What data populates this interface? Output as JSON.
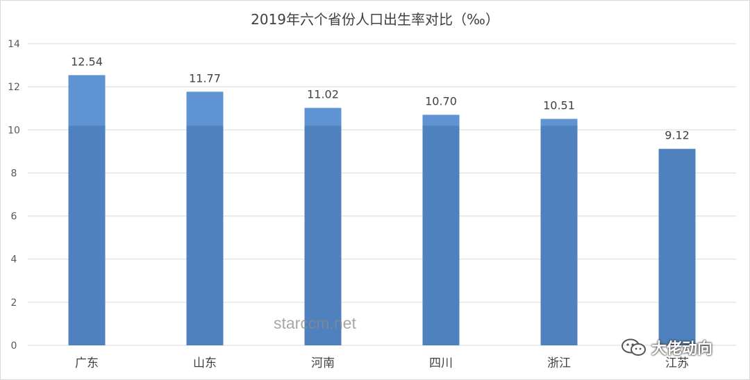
{
  "chart_data": {
    "type": "bar",
    "title": "2019年六个省份人口出生率对比（‰）",
    "categories": [
      "广东",
      "山东",
      "河南",
      "四川",
      "浙江",
      "江苏"
    ],
    "values": [
      12.54,
      11.77,
      11.02,
      10.7,
      10.51,
      9.12
    ],
    "data_labels": [
      "12.54",
      "11.77",
      "11.02",
      "10.70",
      "10.51",
      "9.12"
    ],
    "yticks": [
      "0",
      "2",
      "4",
      "6",
      "8",
      "10",
      "12",
      "14"
    ],
    "ylim": [
      0,
      14
    ],
    "grid": true,
    "highlight_threshold": 10.2,
    "colors": {
      "bar": "#4e81bd",
      "bar_highlight": "#5f93d3",
      "grid": "#d9d9d9",
      "label": "#404040",
      "axis_text": "#595959"
    }
  },
  "watermark": "starccm.net",
  "badge": {
    "icon": "wechat-icon",
    "text": "大佬动向"
  }
}
